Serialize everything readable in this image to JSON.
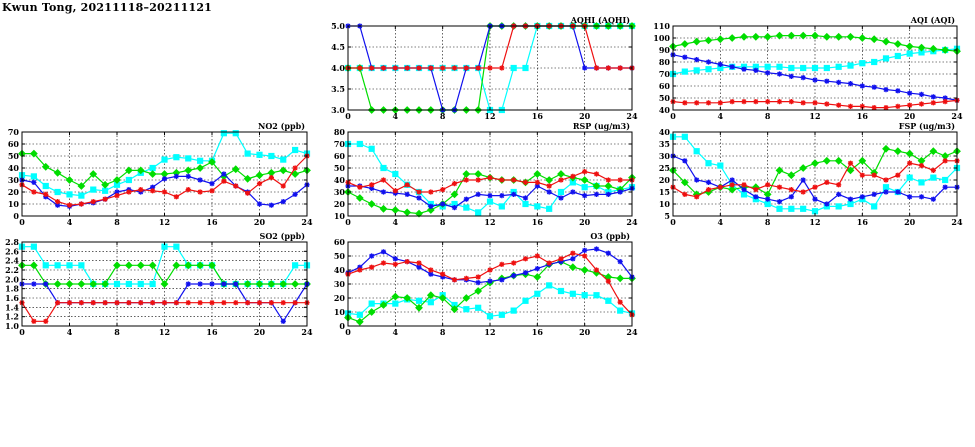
{
  "page_title": "Kwun Tong, 20211118–20211121",
  "colors": {
    "day1": "#00ffff",
    "day2": "#00dd00",
    "day3": "#1010ee",
    "day4": "#ee1010"
  },
  "chart_data": [
    {
      "id": "aqhi",
      "type": "line",
      "title": "AQHI (AQHI)",
      "xlim": [
        0,
        24
      ],
      "xticks": [
        0,
        4,
        8,
        12,
        16,
        20,
        24
      ],
      "ylim": [
        3.0,
        5.0
      ],
      "yticks": [
        "3.0",
        "3.5",
        "4.0",
        "4.5",
        "5.0"
      ],
      "grid": true,
      "series": [
        {
          "color": "#00ffff",
          "marker": "square",
          "values": [
            4,
            4,
            4,
            4,
            4,
            4,
            4,
            4,
            4,
            4,
            4,
            4,
            3,
            3,
            4,
            4,
            5,
            5,
            5,
            5,
            5,
            5,
            5,
            5,
            5
          ]
        },
        {
          "color": "#00dd00",
          "marker": "diamond",
          "values": [
            4,
            4,
            3,
            3,
            3,
            3,
            3,
            3,
            3,
            3,
            3,
            3,
            5,
            5,
            5,
            5,
            5,
            5,
            5,
            5,
            5,
            5,
            5,
            5,
            5
          ]
        },
        {
          "color": "#1010ee",
          "marker": "star",
          "values": [
            5,
            5,
            4,
            4,
            4,
            4,
            4,
            4,
            3,
            3,
            4,
            4,
            5,
            5,
            5,
            5,
            5,
            5,
            5,
            5,
            4,
            4,
            4,
            4,
            4
          ]
        },
        {
          "color": "#ee1010",
          "marker": "star",
          "values": [
            4,
            4,
            4,
            4,
            4,
            4,
            4,
            4,
            4,
            4,
            4,
            4,
            4,
            4,
            5,
            5,
            5,
            5,
            5,
            5,
            5,
            4,
            4,
            4,
            4
          ]
        }
      ]
    },
    {
      "id": "aqi",
      "type": "line",
      "title": "AQI (AQI)",
      "xlim": [
        0,
        24
      ],
      "xticks": [
        0,
        4,
        8,
        12,
        16,
        20,
        24
      ],
      "ylim": [
        40,
        110
      ],
      "yticks": [
        "40",
        "50",
        "60",
        "70",
        "80",
        "90",
        "100",
        "110"
      ],
      "grid": true,
      "series": [
        {
          "color": "#00ffff",
          "marker": "square",
          "values": [
            70,
            72,
            73,
            74,
            75,
            76,
            76,
            76,
            76,
            76,
            75,
            75,
            75,
            75,
            76,
            77,
            79,
            80,
            83,
            85,
            87,
            88,
            89,
            90,
            91
          ]
        },
        {
          "color": "#00dd00",
          "marker": "diamond",
          "values": [
            93,
            95,
            97,
            98,
            99,
            100,
            101,
            101,
            101,
            102,
            102,
            102,
            102,
            101,
            101,
            101,
            100,
            99,
            97,
            95,
            93,
            92,
            91,
            90,
            89
          ]
        },
        {
          "color": "#1010ee",
          "marker": "star",
          "values": [
            86,
            84,
            82,
            80,
            78,
            76,
            74,
            73,
            71,
            70,
            68,
            67,
            65,
            64,
            63,
            62,
            60,
            59,
            57,
            56,
            54,
            53,
            51,
            50,
            48
          ]
        },
        {
          "color": "#ee1010",
          "marker": "star",
          "values": [
            47,
            46,
            46,
            46,
            46,
            47,
            47,
            47,
            47,
            47,
            47,
            46,
            46,
            45,
            44,
            43,
            43,
            42,
            42,
            43,
            44,
            45,
            46,
            47,
            48
          ]
        }
      ]
    },
    {
      "id": "no2",
      "type": "line",
      "title": "NO2 (ppb)",
      "xlim": [
        0,
        24
      ],
      "xticks": [
        0,
        4,
        8,
        12,
        16,
        20,
        24
      ],
      "ylim": [
        0,
        70
      ],
      "yticks": [
        "0",
        "10",
        "20",
        "30",
        "40",
        "50",
        "60",
        "70"
      ],
      "grid": true,
      "series": [
        {
          "color": "#00ffff",
          "marker": "square",
          "values": [
            34,
            33,
            25,
            20,
            18,
            17,
            22,
            21,
            26,
            30,
            36,
            40,
            47,
            49,
            48,
            46,
            46,
            69,
            69,
            52,
            51,
            50,
            47,
            55,
            52
          ]
        },
        {
          "color": "#00dd00",
          "marker": "diamond",
          "values": [
            52,
            52,
            41,
            36,
            30,
            25,
            35,
            26,
            30,
            38,
            38,
            35,
            35,
            36,
            38,
            40,
            45,
            33,
            39,
            31,
            34,
            36,
            38,
            35,
            38
          ]
        },
        {
          "color": "#1010ee",
          "marker": "star",
          "values": [
            30,
            28,
            16,
            9,
            8,
            10,
            11,
            14,
            20,
            22,
            20,
            24,
            31,
            33,
            33,
            30,
            27,
            35,
            25,
            20,
            10,
            9,
            12,
            18,
            26
          ]
        },
        {
          "color": "#ee1010",
          "marker": "star",
          "values": [
            26,
            20,
            18,
            12,
            9,
            10,
            12,
            14,
            17,
            20,
            22,
            21,
            20,
            16,
            22,
            20,
            21,
            29,
            25,
            19,
            27,
            32,
            25,
            40,
            50
          ]
        }
      ]
    },
    {
      "id": "rsp",
      "type": "line",
      "title": "RSP (ug/m3)",
      "xlim": [
        0,
        24
      ],
      "xticks": [
        0,
        4,
        8,
        12,
        16,
        20,
        24
      ],
      "ylim": [
        10,
        80
      ],
      "yticks": [
        "10",
        "20",
        "30",
        "40",
        "50",
        "60",
        "70",
        "80"
      ],
      "grid": true,
      "series": [
        {
          "color": "#00ffff",
          "marker": "square",
          "values": [
            70,
            70,
            66,
            50,
            45,
            36,
            30,
            20,
            18,
            20,
            17,
            13,
            22,
            18,
            30,
            20,
            18,
            16,
            30,
            38,
            34,
            35,
            30,
            32,
            34
          ]
        },
        {
          "color": "#00dd00",
          "marker": "diamond",
          "values": [
            30,
            25,
            20,
            16,
            15,
            13,
            12,
            15,
            20,
            28,
            45,
            45,
            42,
            40,
            40,
            38,
            45,
            40,
            45,
            42,
            40,
            35,
            35,
            32,
            42
          ]
        },
        {
          "color": "#1010ee",
          "marker": "star",
          "values": [
            35,
            35,
            33,
            30,
            29,
            28,
            25,
            18,
            20,
            17,
            24,
            28,
            27,
            27,
            28,
            25,
            35,
            30,
            25,
            30,
            27,
            28,
            28,
            30,
            33
          ]
        },
        {
          "color": "#ee1010",
          "marker": "star",
          "values": [
            38,
            34,
            36,
            40,
            31,
            36,
            30,
            30,
            32,
            37,
            40,
            40,
            42,
            40,
            40,
            38,
            38,
            35,
            40,
            43,
            47,
            45,
            40,
            40,
            40
          ]
        }
      ]
    },
    {
      "id": "fsp",
      "type": "line",
      "title": "FSP (ug/m3)",
      "xlim": [
        0,
        24
      ],
      "xticks": [
        0,
        4,
        8,
        12,
        16,
        20,
        24
      ],
      "ylim": [
        5,
        40
      ],
      "yticks": [
        "5",
        "10",
        "15",
        "20",
        "25",
        "30",
        "35",
        "40"
      ],
      "grid": true,
      "series": [
        {
          "color": "#00ffff",
          "marker": "square",
          "values": [
            38,
            38,
            32,
            27,
            26,
            18,
            14,
            12,
            10,
            8,
            8,
            8,
            7,
            9,
            9,
            10,
            12,
            9,
            17,
            15,
            21,
            19,
            21,
            20,
            25
          ]
        },
        {
          "color": "#00dd00",
          "marker": "diamond",
          "values": [
            24,
            19,
            14,
            15,
            17,
            16,
            17,
            17,
            14,
            24,
            22,
            25,
            27,
            28,
            28,
            24,
            28,
            23,
            33,
            32,
            31,
            28,
            32,
            30,
            32
          ]
        },
        {
          "color": "#1010ee",
          "marker": "star",
          "values": [
            30,
            28,
            20,
            19,
            17,
            20,
            16,
            13,
            12,
            11,
            13,
            20,
            12,
            10,
            14,
            12,
            13,
            14,
            15,
            15,
            13,
            13,
            12,
            17,
            17
          ]
        },
        {
          "color": "#ee1010",
          "marker": "star",
          "values": [
            17,
            14,
            13,
            16,
            17,
            18,
            18,
            16,
            18,
            17,
            16,
            15,
            17,
            19,
            18,
            27,
            22,
            22,
            20,
            22,
            27,
            26,
            24,
            28,
            28
          ]
        }
      ]
    },
    {
      "id": "so2",
      "type": "line",
      "title": "SO2 (ppb)",
      "xlim": [
        0,
        24
      ],
      "xticks": [
        0,
        4,
        8,
        12,
        16,
        20,
        24
      ],
      "ylim": [
        1.0,
        2.8
      ],
      "yticks": [
        "1.0",
        "1.2",
        "1.4",
        "1.6",
        "1.8",
        "2.0",
        "2.2",
        "2.4",
        "2.6",
        "2.8"
      ],
      "grid": true,
      "series": [
        {
          "color": "#00ffff",
          "marker": "square",
          "values": [
            2.7,
            2.7,
            2.3,
            2.3,
            2.3,
            2.3,
            1.9,
            1.9,
            1.9,
            1.9,
            1.9,
            1.9,
            2.7,
            2.7,
            2.3,
            2.3,
            2.3,
            1.9,
            1.9,
            1.9,
            1.9,
            1.9,
            1.9,
            2.3,
            2.3
          ]
        },
        {
          "color": "#00dd00",
          "marker": "diamond",
          "values": [
            2.3,
            2.3,
            1.9,
            1.9,
            1.9,
            1.9,
            1.9,
            1.9,
            2.3,
            2.3,
            2.3,
            2.3,
            1.9,
            2.3,
            2.3,
            2.3,
            2.3,
            1.9,
            1.9,
            1.9,
            1.9,
            1.9,
            1.9,
            1.9,
            1.9
          ]
        },
        {
          "color": "#1010ee",
          "marker": "star",
          "values": [
            1.9,
            1.9,
            1.9,
            1.5,
            1.5,
            1.5,
            1.5,
            1.5,
            1.5,
            1.5,
            1.5,
            1.5,
            1.5,
            1.5,
            1.9,
            1.9,
            1.9,
            1.9,
            1.9,
            1.5,
            1.5,
            1.5,
            1.1,
            1.5,
            1.9
          ]
        },
        {
          "color": "#ee1010",
          "marker": "star",
          "values": [
            1.5,
            1.1,
            1.1,
            1.5,
            1.5,
            1.5,
            1.5,
            1.5,
            1.5,
            1.5,
            1.5,
            1.5,
            1.5,
            1.5,
            1.5,
            1.5,
            1.5,
            1.5,
            1.5,
            1.5,
            1.5,
            1.5,
            1.5,
            1.5,
            1.5
          ]
        }
      ]
    },
    {
      "id": "o3",
      "type": "line",
      "title": "O3 (ppb)",
      "xlim": [
        0,
        24
      ],
      "xticks": [
        0,
        4,
        8,
        12,
        16,
        20,
        24
      ],
      "ylim": [
        0,
        60
      ],
      "yticks": [
        "0",
        "10",
        "20",
        "30",
        "40",
        "50",
        "60"
      ],
      "grid": true,
      "series": [
        {
          "color": "#00ffff",
          "marker": "square",
          "values": [
            9,
            8,
            16,
            16,
            16,
            19,
            18,
            17,
            22,
            15,
            12,
            13,
            7,
            8,
            11,
            18,
            23,
            29,
            25,
            23,
            22,
            22,
            18,
            11,
            9
          ]
        },
        {
          "color": "#00dd00",
          "marker": "diamond",
          "values": [
            6,
            3,
            10,
            15,
            21,
            20,
            13,
            22,
            20,
            12,
            20,
            25,
            31,
            34,
            36,
            37,
            35,
            44,
            46,
            42,
            40,
            38,
            35,
            34,
            34
          ]
        },
        {
          "color": "#1010ee",
          "marker": "star",
          "values": [
            38,
            42,
            50,
            53,
            48,
            46,
            42,
            37,
            35,
            33,
            33,
            31,
            32,
            33,
            36,
            38,
            41,
            44,
            46,
            48,
            54,
            55,
            52,
            46,
            35
          ]
        },
        {
          "color": "#ee1010",
          "marker": "star",
          "values": [
            37,
            40,
            42,
            45,
            44,
            46,
            45,
            40,
            37,
            33,
            34,
            35,
            40,
            44,
            45,
            48,
            50,
            45,
            48,
            52,
            50,
            40,
            32,
            17,
            8
          ]
        }
      ]
    }
  ]
}
